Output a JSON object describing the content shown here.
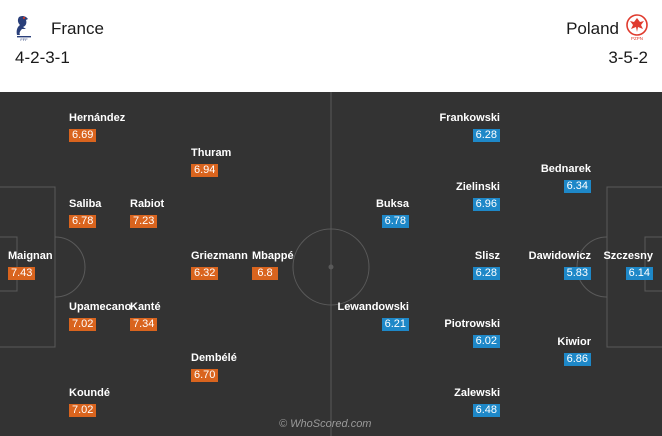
{
  "home": {
    "name": "France",
    "formation": "4-2-3-1",
    "color": "#d9641e",
    "crest": "french-rooster-crest"
  },
  "away": {
    "name": "Poland",
    "formation": "3-5-2",
    "color": "#1e88c8",
    "crest": "polish-eagle-crest",
    "crest_text": "PZPN"
  },
  "watermark": "© WhoScored.com",
  "home_players": [
    {
      "name": "Hernández",
      "rating": "6.69"
    },
    {
      "name": "Thuram",
      "rating": "6.94"
    },
    {
      "name": "Saliba",
      "rating": "6.78"
    },
    {
      "name": "Rabiot",
      "rating": "7.23"
    },
    {
      "name": "Maignan",
      "rating": "7.43"
    },
    {
      "name": "Griezmann",
      "rating": "6.32"
    },
    {
      "name": "Mbappé",
      "rating": "6.8"
    },
    {
      "name": "Upamecano",
      "rating": "7.02"
    },
    {
      "name": "Kanté",
      "rating": "7.34"
    },
    {
      "name": "Dembélé",
      "rating": "6.70"
    },
    {
      "name": "Koundé",
      "rating": "7.02"
    }
  ],
  "away_players": [
    {
      "name": "Frankowski",
      "rating": "6.28"
    },
    {
      "name": "Bednarek",
      "rating": "6.34"
    },
    {
      "name": "Zielinski",
      "rating": "6.96"
    },
    {
      "name": "Buksa",
      "rating": "6.78"
    },
    {
      "name": "Slisz",
      "rating": "6.28"
    },
    {
      "name": "Dawidowicz",
      "rating": "5.83"
    },
    {
      "name": "Szczesny",
      "rating": "6.14"
    },
    {
      "name": "Lewandowski",
      "rating": "6.21"
    },
    {
      "name": "Piotrowski",
      "rating": "6.02"
    },
    {
      "name": "Kiwior",
      "rating": "6.86"
    },
    {
      "name": "Zalewski",
      "rating": "6.48"
    }
  ]
}
